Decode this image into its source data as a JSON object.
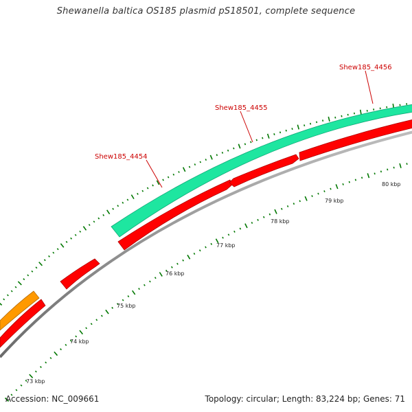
{
  "title": "Shewanella baltica OS185 plasmid pS18501, complete sequence",
  "footer": {
    "accession": "Accession: NC_009661",
    "summary": "Topology: circular; Length: 83,224 bp; Genes: 71"
  },
  "colors": {
    "forward_cds": "#1ee6a0",
    "reverse_cds": "#ff0000",
    "other_feature": "#ff9900",
    "backbone": "#808080",
    "ticks": "#007700",
    "gene_label": "#cc0000",
    "tick_label": "#222222"
  },
  "map": {
    "topology": "circular",
    "length_bp": 83224,
    "tick_labels": [
      {
        "kbp": 73,
        "label": "73 kbp"
      },
      {
        "kbp": 74,
        "label": "74 kbp"
      },
      {
        "kbp": 75,
        "label": "75 kbp"
      },
      {
        "kbp": 76,
        "label": "76 kbp"
      },
      {
        "kbp": 77,
        "label": "77 kbp"
      },
      {
        "kbp": 78,
        "label": "78 kbp"
      },
      {
        "kbp": 79,
        "label": "79 kbp"
      },
      {
        "kbp": 80,
        "label": "80 kbp"
      }
    ],
    "gene_labels": [
      {
        "name": "Shew185_4454"
      },
      {
        "name": "Shew185_4455"
      },
      {
        "name": "Shew185_4456"
      }
    ]
  }
}
